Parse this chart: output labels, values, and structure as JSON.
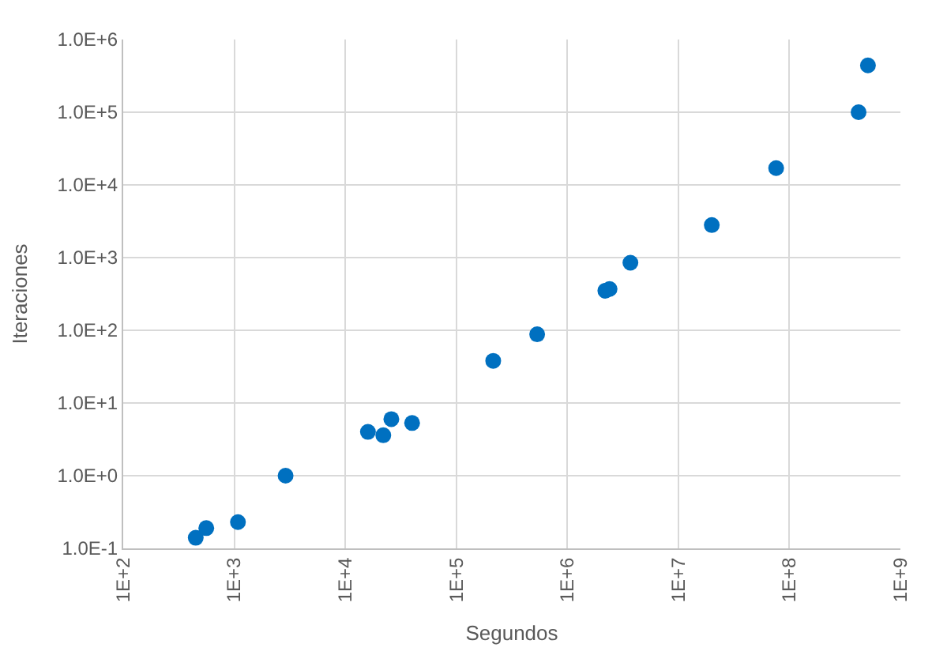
{
  "chart_data": {
    "type": "scatter",
    "xlabel": "Segundos",
    "ylabel": "Iteraciones",
    "log": "xy",
    "grid": true,
    "marker": "circle",
    "xlim": [
      100,
      1000000000
    ],
    "ylim": [
      0.1,
      1000000
    ],
    "xticks": [
      {
        "value": 100,
        "label": "1E+2"
      },
      {
        "value": 1000,
        "label": "1E+3"
      },
      {
        "value": 10000,
        "label": "1E+4"
      },
      {
        "value": 100000,
        "label": "1E+5"
      },
      {
        "value": 1000000,
        "label": "1E+6"
      },
      {
        "value": 10000000,
        "label": "1E+7"
      },
      {
        "value": 100000000,
        "label": "1E+8"
      },
      {
        "value": 1000000000,
        "label": "1E+9"
      }
    ],
    "yticks": [
      {
        "value": 0.1,
        "label": "1.0E-1"
      },
      {
        "value": 1,
        "label": "1.0E+0"
      },
      {
        "value": 10,
        "label": "1.0E+1"
      },
      {
        "value": 100,
        "label": "1.0E+2"
      },
      {
        "value": 1000,
        "label": "1.0E+3"
      },
      {
        "value": 10000,
        "label": "1.0E+4"
      },
      {
        "value": 100000,
        "label": "1.0E+5"
      },
      {
        "value": 1000000,
        "label": "1.0E+6"
      }
    ],
    "series": [
      {
        "color": "#0070c0",
        "x": [
          450,
          560,
          1080,
          2900,
          16000,
          22000,
          26000,
          40000,
          215000,
          535000,
          2200000,
          2400000,
          3700000,
          20000000,
          76000000,
          420000000,
          510000000
        ],
        "values": [
          0.14,
          0.19,
          0.23,
          1.0,
          4.0,
          3.6,
          6,
          5.3,
          38,
          88,
          350,
          370,
          850,
          2800,
          17000,
          100000,
          440000
        ]
      }
    ]
  }
}
